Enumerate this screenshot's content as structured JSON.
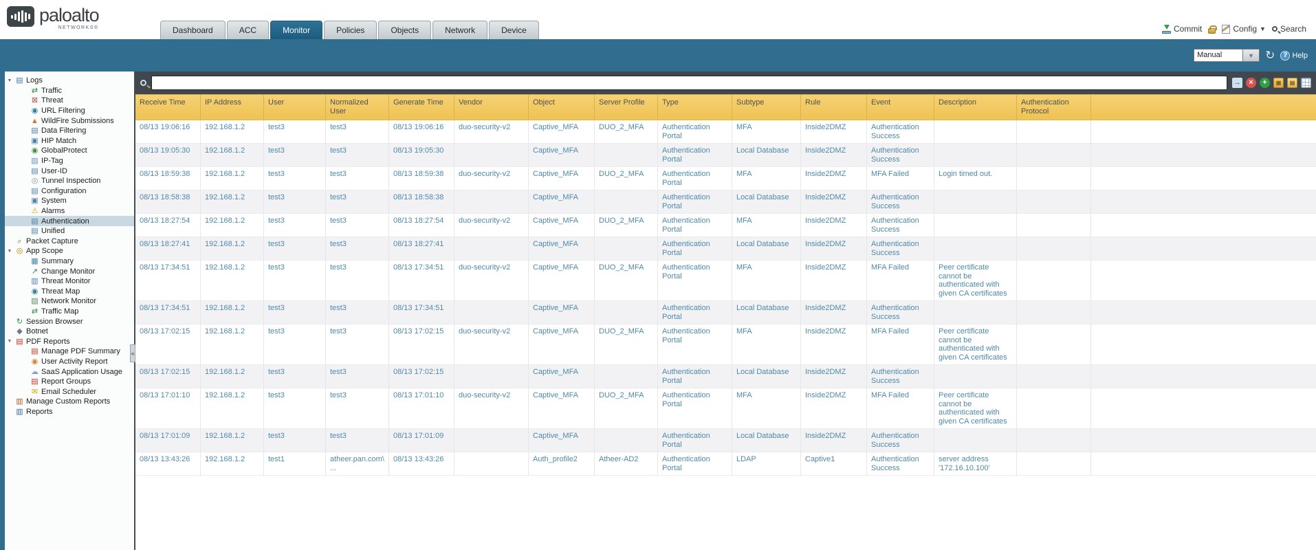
{
  "brand": {
    "name": "paloalto",
    "sub": "NETWORKS®"
  },
  "nav": {
    "tabs": [
      {
        "label": "Dashboard",
        "active": false
      },
      {
        "label": "ACC",
        "active": false
      },
      {
        "label": "Monitor",
        "active": true
      },
      {
        "label": "Policies",
        "active": false
      },
      {
        "label": "Objects",
        "active": false
      },
      {
        "label": "Network",
        "active": false
      },
      {
        "label": "Device",
        "active": false
      }
    ]
  },
  "utility": {
    "commit_label": "Commit",
    "config_label": "Config",
    "search_label": "Search"
  },
  "toolbar": {
    "refresh_mode": "Manual",
    "help_label": "Help"
  },
  "filter": {
    "value": "",
    "placeholder": ""
  },
  "filter_icons": [
    {
      "name": "apply-filter-icon"
    },
    {
      "name": "clear-filter-icon"
    },
    {
      "name": "add-filter-icon"
    },
    {
      "name": "save-filter-icon"
    },
    {
      "name": "load-filter-icon"
    },
    {
      "name": "export-icon"
    }
  ],
  "sidebar": {
    "items": [
      {
        "label": "Logs",
        "level": 0,
        "group": true,
        "expanded": true,
        "icon": "logs-icon"
      },
      {
        "label": "Traffic",
        "level": 1,
        "icon": "traffic-log-icon"
      },
      {
        "label": "Threat",
        "level": 1,
        "icon": "threat-log-icon"
      },
      {
        "label": "URL Filtering",
        "level": 1,
        "icon": "url-filtering-icon"
      },
      {
        "label": "WildFire Submissions",
        "level": 1,
        "icon": "wildfire-icon"
      },
      {
        "label": "Data Filtering",
        "level": 1,
        "icon": "data-filtering-icon"
      },
      {
        "label": "HIP Match",
        "level": 1,
        "icon": "hip-match-icon"
      },
      {
        "label": "GlobalProtect",
        "level": 1,
        "icon": "globalprotect-icon"
      },
      {
        "label": "IP-Tag",
        "level": 1,
        "icon": "ip-tag-icon"
      },
      {
        "label": "User-ID",
        "level": 1,
        "icon": "user-id-icon"
      },
      {
        "label": "Tunnel Inspection",
        "level": 1,
        "icon": "tunnel-inspection-icon"
      },
      {
        "label": "Configuration",
        "level": 1,
        "icon": "configuration-log-icon"
      },
      {
        "label": "System",
        "level": 1,
        "icon": "system-log-icon"
      },
      {
        "label": "Alarms",
        "level": 1,
        "icon": "alarms-icon"
      },
      {
        "label": "Authentication",
        "level": 1,
        "icon": "authentication-log-icon",
        "selected": true
      },
      {
        "label": "Unified",
        "level": 1,
        "icon": "unified-log-icon"
      },
      {
        "label": "Packet Capture",
        "level": 0,
        "icon": "packet-capture-icon"
      },
      {
        "label": "App Scope",
        "level": 0,
        "group": true,
        "expanded": true,
        "icon": "app-scope-icon"
      },
      {
        "label": "Summary",
        "level": 1,
        "icon": "summary-icon"
      },
      {
        "label": "Change Monitor",
        "level": 1,
        "icon": "change-monitor-icon"
      },
      {
        "label": "Threat Monitor",
        "level": 1,
        "icon": "threat-monitor-icon"
      },
      {
        "label": "Threat Map",
        "level": 1,
        "icon": "threat-map-icon"
      },
      {
        "label": "Network Monitor",
        "level": 1,
        "icon": "network-monitor-icon"
      },
      {
        "label": "Traffic Map",
        "level": 1,
        "icon": "traffic-map-icon"
      },
      {
        "label": "Session Browser",
        "level": 0,
        "icon": "session-browser-icon"
      },
      {
        "label": "Botnet",
        "level": 0,
        "icon": "botnet-icon"
      },
      {
        "label": "PDF Reports",
        "level": 0,
        "group": true,
        "expanded": true,
        "icon": "pdf-reports-icon"
      },
      {
        "label": "Manage PDF Summary",
        "level": 1,
        "icon": "manage-pdf-summary-icon"
      },
      {
        "label": "User Activity Report",
        "level": 1,
        "icon": "user-activity-report-icon"
      },
      {
        "label": "SaaS Application Usage",
        "level": 1,
        "icon": "saas-usage-icon"
      },
      {
        "label": "Report Groups",
        "level": 1,
        "icon": "report-groups-icon"
      },
      {
        "label": "Email Scheduler",
        "level": 1,
        "icon": "email-scheduler-icon"
      },
      {
        "label": "Manage Custom Reports",
        "level": 0,
        "icon": "manage-custom-reports-icon"
      },
      {
        "label": "Reports",
        "level": 0,
        "icon": "reports-icon"
      }
    ]
  },
  "table": {
    "columns": [
      "Receive Time",
      "IP Address",
      "User",
      "Normalized User",
      "Generate Time",
      "Vendor",
      "Object",
      "Server Profile",
      "Type",
      "Subtype",
      "Rule",
      "Event",
      "Description",
      "Authentication Protocol"
    ],
    "rows": [
      [
        "08/13 19:06:16",
        "192.168.1.2",
        "test3",
        "test3",
        "08/13 19:06:16",
        "duo-security-v2",
        "Captive_MFA",
        "DUO_2_MFA",
        "Authentication Portal",
        "MFA",
        "Inside2DMZ",
        "Authentication Success",
        "",
        ""
      ],
      [
        "08/13 19:05:30",
        "192.168.1.2",
        "test3",
        "test3",
        "08/13 19:05:30",
        "",
        "Captive_MFA",
        "",
        "Authentication Portal",
        "Local Database",
        "Inside2DMZ",
        "Authentication Success",
        "",
        ""
      ],
      [
        "08/13 18:59:38",
        "192.168.1.2",
        "test3",
        "test3",
        "08/13 18:59:38",
        "duo-security-v2",
        "Captive_MFA",
        "DUO_2_MFA",
        "Authentication Portal",
        "MFA",
        "Inside2DMZ",
        "MFA Failed",
        "Login timed out.",
        ""
      ],
      [
        "08/13 18:58:38",
        "192.168.1.2",
        "test3",
        "test3",
        "08/13 18:58:38",
        "",
        "Captive_MFA",
        "",
        "Authentication Portal",
        "Local Database",
        "Inside2DMZ",
        "Authentication Success",
        "",
        ""
      ],
      [
        "08/13 18:27:54",
        "192.168.1.2",
        "test3",
        "test3",
        "08/13 18:27:54",
        "duo-security-v2",
        "Captive_MFA",
        "DUO_2_MFA",
        "Authentication Portal",
        "MFA",
        "Inside2DMZ",
        "Authentication Success",
        "",
        ""
      ],
      [
        "08/13 18:27:41",
        "192.168.1.2",
        "test3",
        "test3",
        "08/13 18:27:41",
        "",
        "Captive_MFA",
        "",
        "Authentication Portal",
        "Local Database",
        "Inside2DMZ",
        "Authentication Success",
        "",
        ""
      ],
      [
        "08/13 17:34:51",
        "192.168.1.2",
        "test3",
        "test3",
        "08/13 17:34:51",
        "duo-security-v2",
        "Captive_MFA",
        "DUO_2_MFA",
        "Authentication Portal",
        "MFA",
        "Inside2DMZ",
        "MFA Failed",
        "Peer certificate cannot be authenticated with given CA certificates",
        ""
      ],
      [
        "08/13 17:34:51",
        "192.168.1.2",
        "test3",
        "test3",
        "08/13 17:34:51",
        "",
        "Captive_MFA",
        "",
        "Authentication Portal",
        "Local Database",
        "Inside2DMZ",
        "Authentication Success",
        "",
        ""
      ],
      [
        "08/13 17:02:15",
        "192.168.1.2",
        "test3",
        "test3",
        "08/13 17:02:15",
        "duo-security-v2",
        "Captive_MFA",
        "DUO_2_MFA",
        "Authentication Portal",
        "MFA",
        "Inside2DMZ",
        "MFA Failed",
        "Peer certificate cannot be authenticated with given CA certificates",
        ""
      ],
      [
        "08/13 17:02:15",
        "192.168.1.2",
        "test3",
        "test3",
        "08/13 17:02:15",
        "",
        "Captive_MFA",
        "",
        "Authentication Portal",
        "Local Database",
        "Inside2DMZ",
        "Authentication Success",
        "",
        ""
      ],
      [
        "08/13 17:01:10",
        "192.168.1.2",
        "test3",
        "test3",
        "08/13 17:01:10",
        "duo-security-v2",
        "Captive_MFA",
        "DUO_2_MFA",
        "Authentication Portal",
        "MFA",
        "Inside2DMZ",
        "MFA Failed",
        "Peer certificate cannot be authenticated with given CA certificates",
        ""
      ],
      [
        "08/13 17:01:09",
        "192.168.1.2",
        "test3",
        "test3",
        "08/13 17:01:09",
        "",
        "Captive_MFA",
        "",
        "Authentication Portal",
        "Local Database",
        "Inside2DMZ",
        "Authentication Success",
        "",
        ""
      ],
      [
        "08/13 13:43:26",
        "192.168.1.2",
        "test1",
        "atheer.pan.com\\...",
        "08/13 13:43:26",
        "",
        "Auth_profile2",
        "Atheer-AD2",
        "Authentication Portal",
        "LDAP",
        "Captive1",
        "Authentication Success",
        "server address '172.16.10.100'",
        ""
      ]
    ]
  },
  "colors": {
    "accent_teal": "#306d8e",
    "header_yellow": "#eec255",
    "active_tab_blue": "#1d5b7f",
    "row_text_blue": "#4f89aa",
    "selected_nav_bg": "#c9d9e2",
    "filterbar_gray": "#40474e"
  }
}
